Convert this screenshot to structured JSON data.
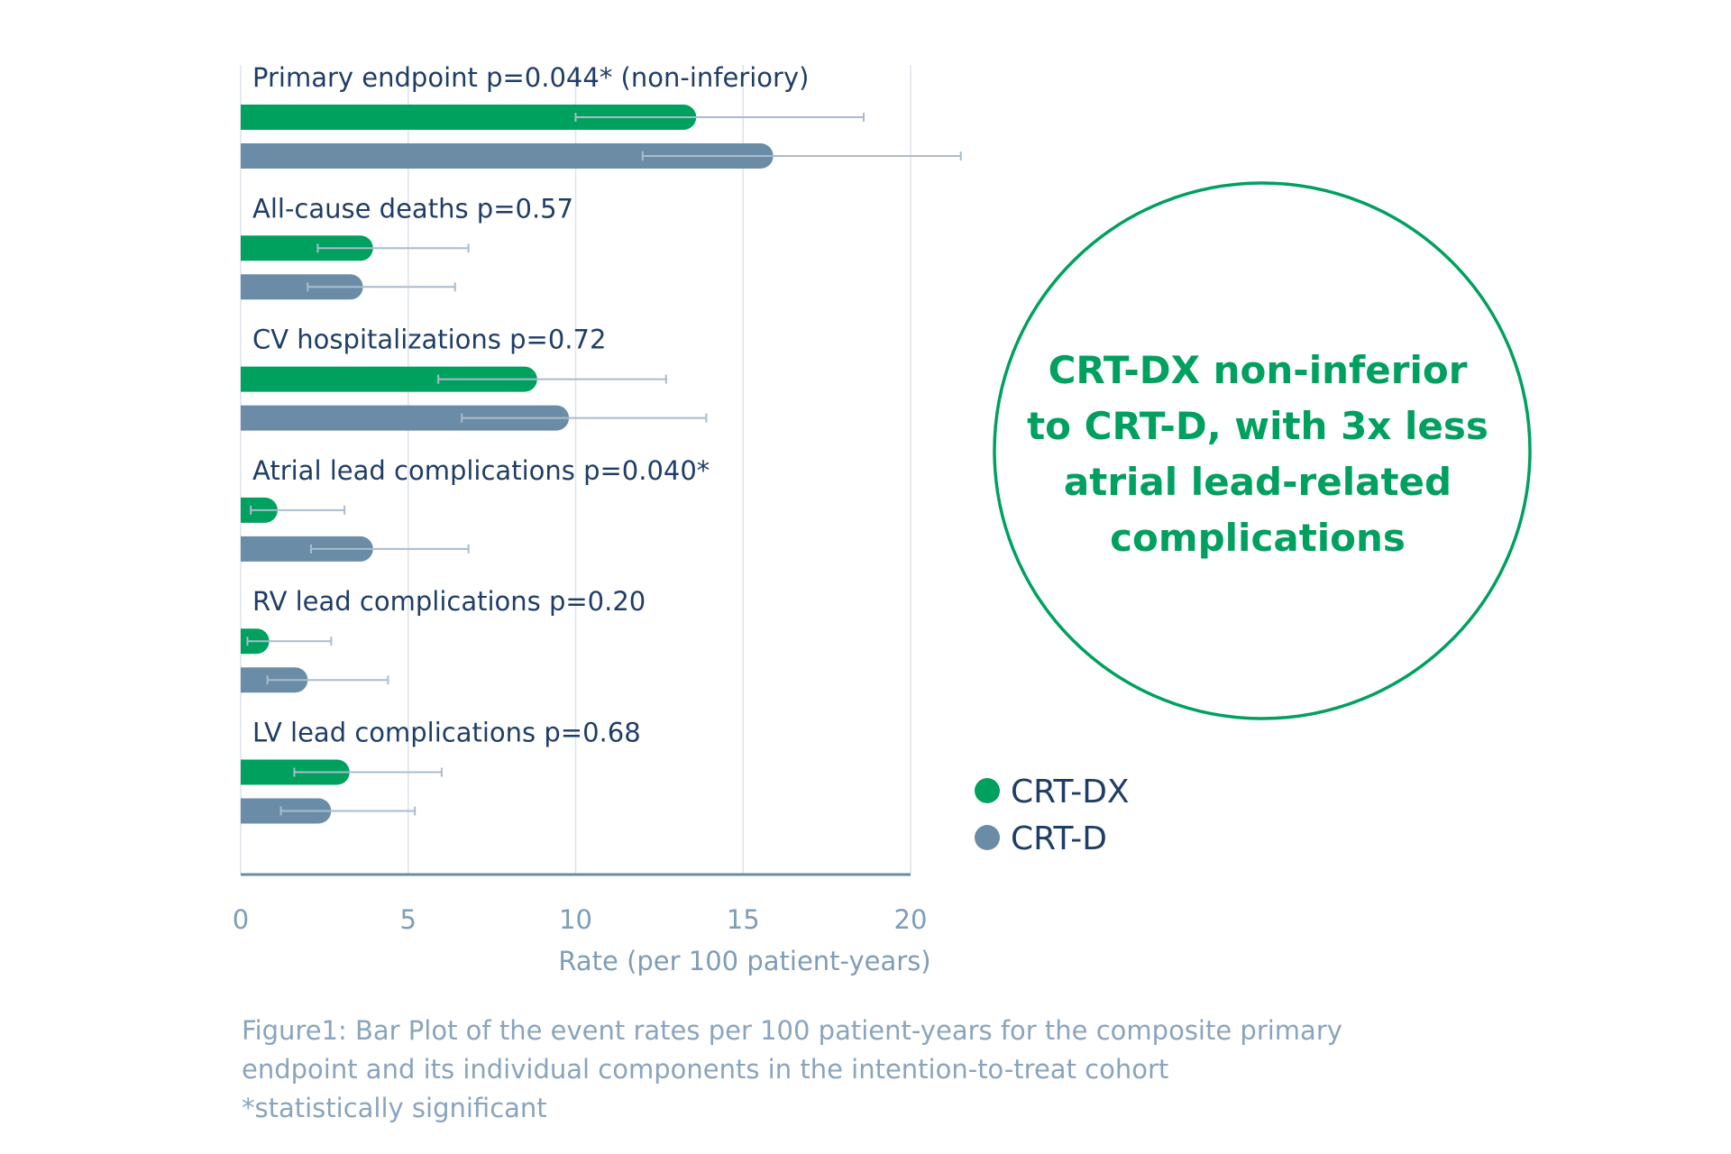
{
  "chart_data": {
    "type": "bar",
    "orientation": "horizontal",
    "categories": [
      "Primary endpoint p=0.044* (non-inferiory)",
      "All-cause deaths p=0.57",
      "CV hospitalizations p=0.72",
      "Atrial lead complications p=0.040*",
      "RV lead complications p=0.20",
      "LV lead complications p=0.68"
    ],
    "series": [
      {
        "name": "CRT-DX",
        "color": "#00a05f",
        "values": [
          13.6,
          3.95,
          8.85,
          1.1,
          0.85,
          3.25
        ],
        "error_low": [
          10.0,
          2.3,
          5.9,
          0.3,
          0.2,
          1.6
        ],
        "error_high": [
          18.6,
          6.8,
          12.7,
          3.1,
          2.7,
          6.0
        ]
      },
      {
        "name": "CRT-D",
        "color": "#6b8ca6",
        "values": [
          15.9,
          3.65,
          9.8,
          3.95,
          2.0,
          2.7
        ],
        "error_low": [
          12.0,
          2.0,
          6.6,
          2.1,
          0.8,
          1.2
        ],
        "error_high": [
          21.5,
          6.4,
          13.9,
          6.8,
          4.4,
          5.2
        ]
      }
    ],
    "xlabel": "Rate (per 100 patient-years)",
    "xticks": [
      "0",
      "5",
      "10",
      "15",
      "20"
    ],
    "xlim": [
      0,
      20
    ],
    "grid": true,
    "legend_placement": "bottom-right"
  },
  "callout": {
    "lines": [
      "CRT-DX  non-inferior",
      "to CRT-D, with 3x less",
      "atrial lead-related",
      "complications"
    ]
  },
  "caption": {
    "lines": [
      "Figure1: Bar Plot of the event rates per 100 patient-years for the composite primary",
      "endpoint and its individual components in the intention-to-treat cohort",
      "*statistically significant"
    ]
  }
}
